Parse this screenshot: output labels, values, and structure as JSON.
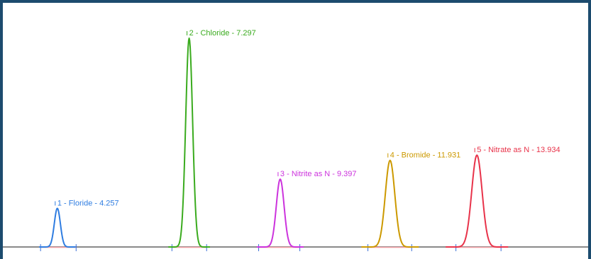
{
  "chart_data": {
    "type": "line",
    "title": "",
    "xlabel": "",
    "ylabel": "",
    "grid": false,
    "legend": "none",
    "xlim": [
      3.0,
      16.5
    ],
    "ylim": [
      0,
      100
    ],
    "peaks": [
      {
        "number": 1,
        "label": "1 - Floride - 4.257",
        "retention_time": 4.257,
        "height": 18.5,
        "width": 0.07,
        "color": "#2f7de1",
        "start": 3.87,
        "end": 4.69
      },
      {
        "number": 2,
        "label": "2 - Chloride - 7.297",
        "retention_time": 7.297,
        "height": 100,
        "width": 0.08,
        "color": "#3aab1e",
        "start": 6.9,
        "end": 7.7
      },
      {
        "number": 3,
        "label": "3 - Nitrite as N - 9.397",
        "retention_time": 9.397,
        "height": 32.5,
        "width": 0.09,
        "color": "#cc33dd",
        "start": 8.9,
        "end": 9.85
      },
      {
        "number": 4,
        "label": "4 - Bromide - 11.931",
        "retention_time": 11.931,
        "height": 41.5,
        "width": 0.11,
        "color": "#cc9900",
        "start": 11.42,
        "end": 12.43
      },
      {
        "number": 5,
        "label": "5 - Nitrate as N - 13.934",
        "retention_time": 13.934,
        "height": 44,
        "width": 0.12,
        "color": "#e8334a",
        "start": 13.45,
        "end": 14.49
      }
    ]
  }
}
